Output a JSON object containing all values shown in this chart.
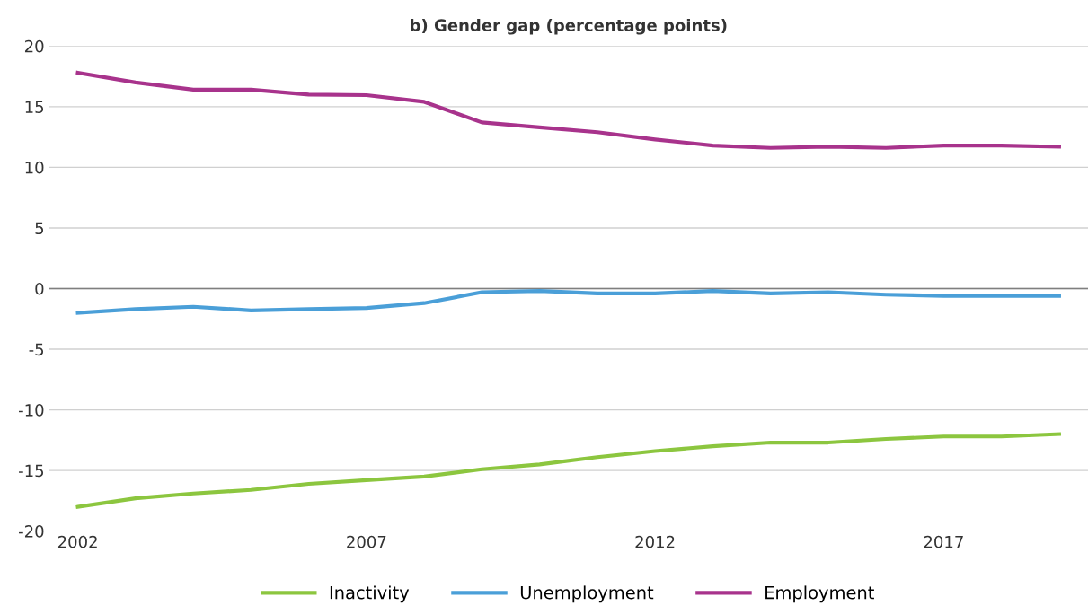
{
  "chart_data": {
    "type": "line",
    "title": "b) Gender gap (percentage points)",
    "x": [
      2002,
      2003,
      2004,
      2005,
      2006,
      2007,
      2008,
      2009,
      2010,
      2011,
      2012,
      2013,
      2014,
      2015,
      2016,
      2017,
      2018,
      2019
    ],
    "series": [
      {
        "name": "Inactivity",
        "color": "#8cc63f",
        "values": [
          -18.0,
          -17.3,
          -16.9,
          -16.6,
          -16.1,
          -15.8,
          -15.5,
          -14.9,
          -14.5,
          -13.9,
          -13.4,
          -13.0,
          -12.7,
          -12.7,
          -12.4,
          -12.2,
          -12.2,
          -12.0
        ]
      },
      {
        "name": "Unemployment",
        "color": "#4a9fd8",
        "values": [
          -2.0,
          -1.7,
          -1.5,
          -1.8,
          -1.7,
          -1.6,
          -1.2,
          -0.3,
          -0.2,
          -0.4,
          -0.4,
          -0.2,
          -0.4,
          -0.3,
          -0.5,
          -0.6,
          -0.6,
          -0.6
        ]
      },
      {
        "name": "Employment",
        "color": "#a8338c",
        "values": [
          17.8,
          17.0,
          16.4,
          16.4,
          16.0,
          15.95,
          15.4,
          13.7,
          13.3,
          12.9,
          12.3,
          11.8,
          11.6,
          11.7,
          11.6,
          11.8,
          11.8,
          11.7
        ]
      }
    ],
    "xlim": [
      2001.5,
      2019.5
    ],
    "xticks": [
      2002,
      2007,
      2012,
      2017
    ],
    "ylim": [
      -20,
      20
    ],
    "yticks": [
      -20,
      -15,
      -10,
      -5,
      0,
      5,
      10,
      15,
      20
    ],
    "ref_lines": [
      {
        "axis": "y",
        "value": 0,
        "color": "#7f7f7f"
      }
    ],
    "grid": "y",
    "legend": "bottom",
    "marker": "none",
    "line_style": "solid"
  }
}
